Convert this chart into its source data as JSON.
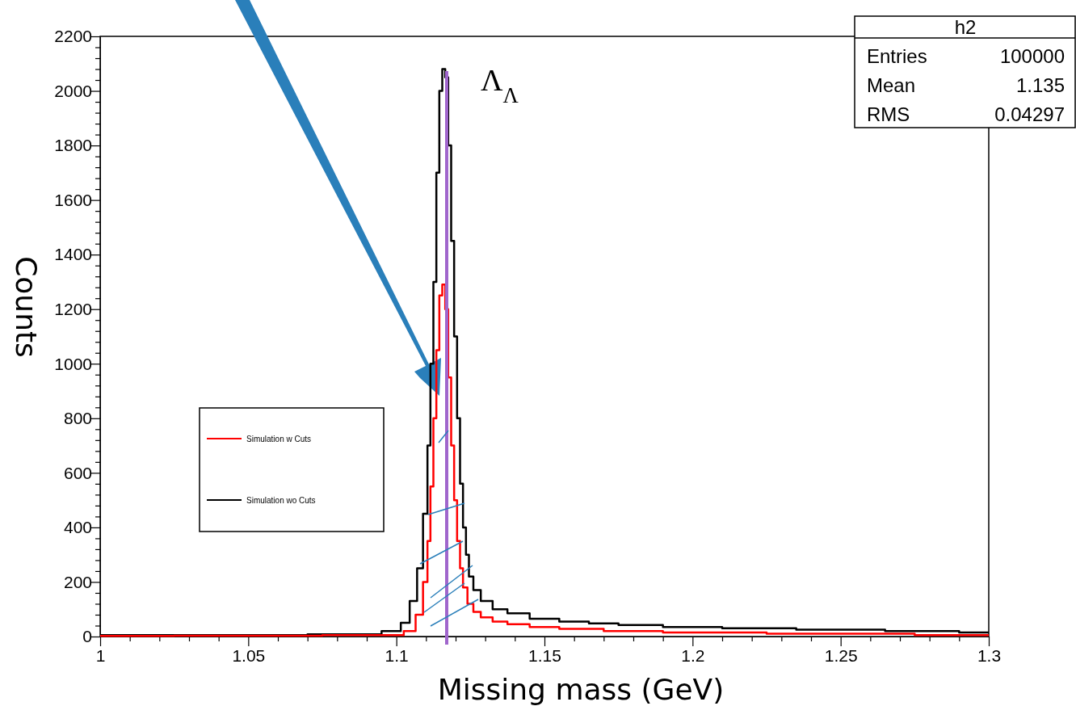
{
  "chart_data": {
    "type": "step",
    "xlabel": "Missing mass (GeV)",
    "ylabel": "Counts",
    "xlim": [
      1,
      1.3
    ],
    "ylim": [
      0,
      2200
    ],
    "xticks": [
      1,
      {
        "value": 1.01,
        "label": null
      },
      {
        "value": 1.02,
        "label": null
      },
      {
        "value": 1.03,
        "label": null
      },
      {
        "value": 1.04,
        "label": null
      },
      1.05,
      {
        "value": 1.06,
        "label": null
      },
      {
        "value": 1.07,
        "label": null
      },
      {
        "value": 1.08,
        "label": null
      },
      {
        "value": 1.09,
        "label": null
      },
      1.1,
      {
        "value": 1.11,
        "label": null
      },
      {
        "value": 1.12,
        "label": null
      },
      {
        "value": 1.13,
        "label": null
      },
      {
        "value": 1.14,
        "label": null
      },
      1.15,
      {
        "value": 1.16,
        "label": null
      },
      {
        "value": 1.17,
        "label": null
      },
      {
        "value": 1.18,
        "label": null
      },
      {
        "value": 1.19,
        "label": null
      },
      1.2,
      {
        "value": 1.21,
        "label": null
      },
      {
        "value": 1.22,
        "label": null
      },
      {
        "value": 1.23,
        "label": null
      },
      {
        "value": 1.24,
        "label": null
      },
      1.25,
      {
        "value": 1.26,
        "label": null
      },
      {
        "value": 1.27,
        "label": null
      },
      {
        "value": 1.28,
        "label": null
      },
      {
        "value": 1.29,
        "label": null
      },
      1.3
    ],
    "yticks": [
      0,
      {
        "value": 40,
        "label": null
      },
      {
        "value": 80,
        "label": null
      },
      {
        "value": 120,
        "label": null
      },
      {
        "value": 160,
        "label": null
      },
      200,
      {
        "value": 240,
        "label": null
      },
      {
        "value": 280,
        "label": null
      },
      {
        "value": 320,
        "label": null
      },
      {
        "value": 360,
        "label": null
      },
      400,
      {
        "value": 440,
        "label": null
      },
      {
        "value": 480,
        "label": null
      },
      {
        "value": 520,
        "label": null
      },
      {
        "value": 560,
        "label": null
      },
      600,
      {
        "value": 640,
        "label": null
      },
      {
        "value": 680,
        "label": null
      },
      {
        "value": 720,
        "label": null
      },
      {
        "value": 760,
        "label": null
      },
      800,
      {
        "value": 840,
        "label": null
      },
      {
        "value": 880,
        "label": null
      },
      {
        "value": 920,
        "label": null
      },
      {
        "value": 960,
        "label": null
      },
      1000,
      {
        "value": 1040,
        "label": null
      },
      {
        "value": 1080,
        "label": null
      },
      {
        "value": 1120,
        "label": null
      },
      {
        "value": 1160,
        "label": null
      },
      1200,
      {
        "value": 1240,
        "label": null
      },
      {
        "value": 1280,
        "label": null
      },
      {
        "value": 1320,
        "label": null
      },
      {
        "value": 1360,
        "label": null
      },
      1400,
      {
        "value": 1440,
        "label": null
      },
      {
        "value": 1480,
        "label": null
      },
      {
        "value": 1520,
        "label": null
      },
      {
        "value": 1560,
        "label": null
      },
      1600,
      {
        "value": 1640,
        "label": null
      },
      {
        "value": 1680,
        "label": null
      },
      {
        "value": 1720,
        "label": null
      },
      {
        "value": 1760,
        "label": null
      },
      1800,
      {
        "value": 1840,
        "label": null
      },
      {
        "value": 1880,
        "label": null
      },
      {
        "value": 1920,
        "label": null
      },
      {
        "value": 1960,
        "label": null
      },
      2000,
      {
        "value": 2040,
        "label": null
      },
      {
        "value": 2080,
        "label": null
      },
      {
        "value": 2120,
        "label": null
      },
      {
        "value": 2160,
        "label": null
      },
      2200
    ],
    "legend": "left",
    "series": [
      {
        "name": "Simulation w Cuts",
        "color": "#ff0000",
        "x": [
          1.0,
          1.05,
          1.1,
          1.105,
          1.108,
          1.11,
          1.111,
          1.112,
          1.113,
          1.114,
          1.115,
          1.116,
          1.117,
          1.118,
          1.119,
          1.12,
          1.121,
          1.122,
          1.123,
          1.125,
          1.127,
          1.13,
          1.135,
          1.14,
          1.15,
          1.16,
          1.18,
          1.2,
          1.25,
          1.3
        ],
        "values": [
          2,
          3,
          5,
          20,
          80,
          200,
          350,
          550,
          800,
          1050,
          1250,
          1290,
          1200,
          950,
          700,
          500,
          350,
          250,
          180,
          120,
          90,
          70,
          55,
          45,
          35,
          28,
          20,
          15,
          10,
          5
        ]
      },
      {
        "name": "Simulation wo Cuts",
        "color": "#000000",
        "x": [
          1.0,
          1.05,
          1.09,
          1.1,
          1.103,
          1.106,
          1.108,
          1.11,
          1.111,
          1.112,
          1.113,
          1.114,
          1.115,
          1.116,
          1.117,
          1.118,
          1.119,
          1.12,
          1.121,
          1.122,
          1.123,
          1.124,
          1.125,
          1.127,
          1.13,
          1.135,
          1.14,
          1.15,
          1.16,
          1.17,
          1.18,
          1.2,
          1.22,
          1.25,
          1.28,
          1.3
        ],
        "values": [
          5,
          5,
          8,
          20,
          50,
          130,
          250,
          450,
          700,
          1000,
          1300,
          1700,
          2000,
          2080,
          2050,
          1800,
          1450,
          1100,
          800,
          560,
          400,
          300,
          220,
          170,
          130,
          100,
          85,
          65,
          55,
          48,
          42,
          35,
          30,
          25,
          20,
          15
        ]
      }
    ],
    "ref_lines": [
      {
        "axis": "x",
        "value": 1.117,
        "label": "Λ$_{Λ}$",
        "color": "#a066cc"
      }
    ],
    "annotations": [
      "h2",
      "Entries",
      "100000",
      "Mean",
      "1.135",
      "RMS",
      "0.04297"
    ]
  }
}
